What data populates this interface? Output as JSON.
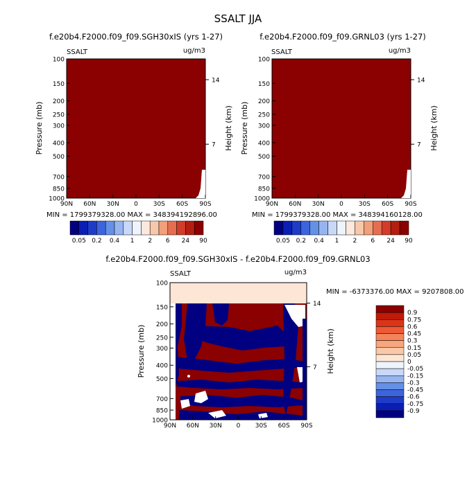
{
  "title": "SSALT JJA",
  "panels": [
    {
      "subtitle": "f.e20b4.F2000.f09_f09.SGH30xIS (yrs 1-27)",
      "left_label": "SSALT",
      "right_label": "ug/m3",
      "min_max": "MIN = 1799379328.00   MAX = 348394192896.00"
    },
    {
      "subtitle": "f.e20b4.F2000.f09_f09.GRNL03 (yrs 1-27)",
      "left_label": "SSALT",
      "right_label": "ug/m3",
      "min_max": "MIN = 1799379328.00   MAX = 348394160128.00"
    },
    {
      "subtitle": "f.e20b4.F2000.f09_f09.SGH30xIS - f.e20b4.F2000.f09_f09.GRNL03",
      "left_label": "SSALT",
      "right_label": "ug/m3",
      "min_max": "MIN = -6373376.00   MAX = 9207808.00"
    }
  ],
  "axes": {
    "ylabel": "Pressure (mb)",
    "y2label": "Height (km)",
    "yticks": [
      "100",
      "150",
      "200",
      "250",
      "300",
      "400",
      "500",
      "700",
      "850",
      "1000"
    ],
    "y2ticks": [
      "14",
      "7"
    ],
    "xticks": [
      "90N",
      "60N",
      "30N",
      "0",
      "30S",
      "60S",
      "90S"
    ]
  },
  "colorbar_top": {
    "labels": [
      "0.05",
      "0.2",
      "0.4",
      "1",
      "2",
      "6",
      "24",
      "90"
    ],
    "colors": [
      "#000080",
      "#0a1eb4",
      "#1e3cc8",
      "#3c64dc",
      "#6490e6",
      "#96b4f0",
      "#c8d8f8",
      "#eef4fc",
      "#fce8dc",
      "#f8c8aa",
      "#f0a07a",
      "#e66e50",
      "#d23c28",
      "#b41e10",
      "#8b0000"
    ]
  },
  "colorbar_diff": {
    "labels": [
      "0.9",
      "0.75",
      "0.6",
      "0.45",
      "0.3",
      "0.15",
      "0.05",
      "0",
      "-0.05",
      "-0.15",
      "-0.3",
      "-0.45",
      "-0.6",
      "-0.75",
      "-0.9"
    ],
    "colors": [
      "#8b0000",
      "#c01a08",
      "#dc3418",
      "#ee5a34",
      "#f6845a",
      "#f8a67c",
      "#fac8a6",
      "#fde6d6",
      "#eef4fc",
      "#c8d8f8",
      "#96b4f0",
      "#6490e6",
      "#3c64dc",
      "#1e3cc8",
      "#0a1eb4",
      "#000080"
    ]
  },
  "chart_data": {
    "type": "heatmap",
    "title": "SSALT JJA",
    "xlabel": "",
    "ylabel": "Pressure (mb)",
    "y2label": "Height (km)",
    "x_ticks": [
      "90N",
      "60N",
      "30N",
      "0",
      "30S",
      "60S",
      "90S"
    ],
    "y_ticks": [
      100,
      150,
      200,
      250,
      300,
      400,
      500,
      700,
      850,
      1000
    ],
    "y_scale": "log",
    "panels": [
      {
        "min": 1799379328.0,
        "max": 348394192896.0,
        "units": "ug/m3"
      },
      {
        "min": 1799379328.0,
        "max": 348394160128.0,
        "units": "ug/m3"
      },
      {
        "min": -6373376.0,
        "max": 9207808.0,
        "units": "ug/m3"
      }
    ]
  }
}
